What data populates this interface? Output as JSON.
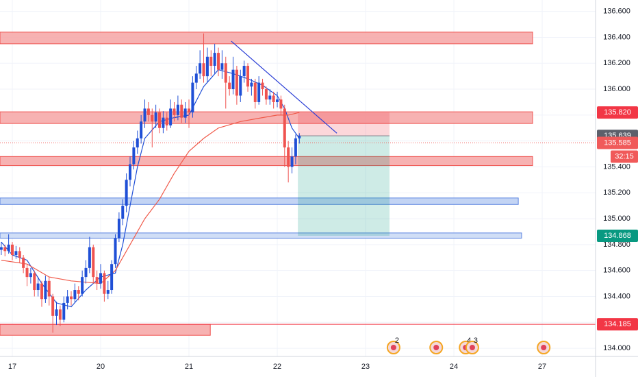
{
  "chart_data": {
    "type": "candlestick",
    "up_color": "#1f4fd6",
    "down_color": "#ef5350",
    "grid": true,
    "xlim": [
      -3.35,
      158.5
    ],
    "ylim": [
      133.937,
      136.688
    ],
    "xticks": [
      {
        "value": 0,
        "label": "17"
      },
      {
        "value": 24,
        "label": "20"
      },
      {
        "value": 48,
        "label": "21"
      },
      {
        "value": 72,
        "label": "22"
      },
      {
        "value": 96,
        "label": "23"
      },
      {
        "value": 120,
        "label": "24"
      },
      {
        "value": 144,
        "label": "27"
      }
    ],
    "yticks": [
      {
        "value": 134.0,
        "label": "134.000"
      },
      {
        "value": 134.2,
        "label": "134.200"
      },
      {
        "value": 134.4,
        "label": "134.400"
      },
      {
        "value": 134.6,
        "label": "134.600"
      },
      {
        "value": 134.8,
        "label": "134.800"
      },
      {
        "value": 135.0,
        "label": "135.000"
      },
      {
        "value": 135.2,
        "label": "135.200"
      },
      {
        "value": 135.4,
        "label": "135.400"
      },
      {
        "value": 135.6,
        "label": "135.600"
      },
      {
        "value": 135.8,
        "label": "135.800"
      },
      {
        "value": 136.0,
        "label": "136.000"
      },
      {
        "value": 136.2,
        "label": "136.200"
      },
      {
        "value": 136.4,
        "label": "136.400"
      },
      {
        "value": 136.6,
        "label": "136.600"
      }
    ],
    "x": [
      -3,
      -2,
      -1,
      0,
      1,
      2,
      3,
      4,
      5,
      6,
      7,
      8,
      9,
      10,
      11,
      12,
      13,
      14,
      15,
      16,
      17,
      18,
      19,
      20,
      21,
      22,
      23,
      24,
      25,
      26,
      27,
      28,
      29,
      30,
      31,
      32,
      33,
      34,
      35,
      36,
      37,
      38,
      39,
      40,
      41,
      42,
      43,
      44,
      45,
      46,
      47,
      48,
      49,
      50,
      51,
      52,
      53,
      54,
      55,
      56,
      57,
      58,
      59,
      60,
      61,
      62,
      63,
      64,
      65,
      66,
      67,
      68,
      69,
      70,
      71,
      72,
      73,
      74,
      75,
      76,
      77,
      78
    ],
    "open": [
      134.76,
      134.78,
      134.75,
      134.8,
      134.72,
      134.75,
      134.7,
      134.62,
      134.55,
      134.58,
      134.45,
      134.5,
      134.38,
      134.52,
      134.4,
      134.25,
      134.3,
      134.22,
      134.35,
      134.4,
      134.38,
      134.45,
      134.42,
      134.55,
      134.62,
      134.78,
      134.55,
      134.5,
      134.58,
      134.42,
      134.45,
      134.65,
      134.85,
      135.0,
      135.1,
      135.3,
      135.42,
      135.55,
      135.62,
      135.75,
      135.85,
      135.8,
      135.75,
      135.82,
      135.7,
      135.78,
      135.72,
      135.85,
      135.8,
      135.88,
      135.78,
      135.85,
      135.82,
      136.05,
      136.12,
      136.2,
      136.1,
      136.25,
      136.18,
      136.28,
      136.15,
      136.2,
      136.05,
      136.0,
      136.15,
      135.95,
      136.1,
      136.18,
      136.02,
      136.05,
      135.9,
      136.05,
      136.0,
      135.92,
      135.95,
      135.9,
      135.92,
      135.85,
      135.55,
      135.4,
      135.48,
      135.62
    ],
    "high": [
      134.82,
      134.8,
      134.88,
      134.82,
      134.79,
      134.78,
      134.72,
      134.65,
      134.62,
      134.6,
      134.55,
      134.52,
      134.56,
      134.55,
      134.42,
      134.36,
      134.33,
      134.4,
      134.45,
      134.44,
      134.5,
      134.48,
      134.6,
      134.68,
      134.86,
      134.8,
      134.6,
      134.65,
      134.6,
      134.52,
      134.68,
      134.88,
      135.05,
      135.15,
      135.35,
      135.48,
      135.6,
      135.68,
      135.8,
      135.92,
      135.9,
      135.85,
      135.88,
      135.85,
      135.83,
      135.82,
      135.92,
      135.9,
      135.95,
      135.92,
      135.9,
      135.92,
      136.1,
      136.18,
      136.3,
      136.43,
      136.32,
      136.3,
      136.35,
      136.32,
      136.3,
      136.25,
      136.1,
      136.25,
      136.18,
      136.15,
      136.22,
      136.2,
      136.08,
      136.08,
      136.1,
      136.08,
      136.02,
      136.0,
      135.98,
      135.98,
      135.95,
      135.88,
      135.6,
      135.55,
      135.65,
      135.66
    ],
    "low": [
      134.72,
      134.71,
      134.73,
      134.68,
      134.69,
      134.66,
      134.58,
      134.48,
      134.5,
      134.4,
      134.4,
      134.32,
      134.35,
      134.33,
      134.12,
      134.18,
      134.17,
      134.2,
      134.3,
      134.33,
      134.35,
      134.37,
      134.4,
      134.5,
      134.58,
      134.5,
      134.45,
      134.46,
      134.36,
      134.38,
      134.42,
      134.62,
      134.82,
      134.95,
      135.05,
      135.25,
      135.38,
      135.5,
      135.58,
      135.7,
      135.75,
      135.55,
      135.7,
      135.66,
      135.66,
      135.68,
      135.7,
      135.75,
      135.76,
      135.74,
      135.74,
      135.7,
      135.78,
      136.0,
      136.08,
      136.05,
      136.05,
      136.1,
      136.12,
      136.1,
      136.08,
      135.85,
      135.95,
      135.96,
      135.88,
      135.9,
      136.05,
      135.98,
      135.95,
      135.85,
      135.88,
      135.95,
      135.88,
      135.88,
      135.85,
      135.86,
      135.8,
      135.4,
      135.28,
      135.35,
      135.42,
      135.58
    ],
    "close": [
      134.78,
      134.75,
      134.8,
      134.72,
      134.75,
      134.7,
      134.62,
      134.55,
      134.58,
      134.45,
      134.5,
      134.38,
      134.52,
      134.4,
      134.25,
      134.3,
      134.22,
      134.35,
      134.4,
      134.38,
      134.45,
      134.42,
      134.55,
      134.62,
      134.78,
      134.55,
      134.5,
      134.58,
      134.42,
      134.45,
      134.65,
      134.85,
      135.0,
      135.1,
      135.3,
      135.42,
      135.55,
      135.62,
      135.75,
      135.85,
      135.8,
      135.75,
      135.82,
      135.7,
      135.78,
      135.72,
      135.85,
      135.8,
      135.88,
      135.78,
      135.85,
      135.82,
      136.05,
      136.12,
      136.2,
      136.1,
      136.25,
      136.18,
      136.28,
      136.15,
      136.2,
      136.05,
      136.0,
      136.15,
      135.95,
      136.1,
      136.18,
      136.02,
      136.05,
      135.9,
      136.05,
      136.0,
      135.92,
      135.95,
      135.9,
      135.92,
      135.85,
      135.55,
      135.4,
      135.48,
      135.62,
      135.64
    ],
    "moving_averages": [
      {
        "color": "#1f4fd6",
        "x": [
          -3,
          0,
          4,
          8,
          12,
          16,
          20,
          24,
          28,
          30,
          32,
          34,
          36,
          40,
          44,
          48,
          52,
          56,
          60,
          64,
          68,
          72,
          74,
          76,
          78
        ],
        "values": [
          134.82,
          134.72,
          134.68,
          134.5,
          134.35,
          134.32,
          134.45,
          134.55,
          134.58,
          134.8,
          135.1,
          135.4,
          135.62,
          135.75,
          135.78,
          135.8,
          136.02,
          136.15,
          136.12,
          136.08,
          136.03,
          135.95,
          135.85,
          135.7,
          135.62
        ]
      },
      {
        "color": "#f05a4a",
        "x": [
          -3,
          4,
          10,
          16,
          24,
          28,
          32,
          36,
          40,
          44,
          48,
          52,
          56,
          62,
          68,
          72,
          75,
          78
        ],
        "values": [
          134.68,
          134.65,
          134.55,
          134.52,
          134.5,
          134.6,
          134.8,
          135.0,
          135.15,
          135.35,
          135.52,
          135.62,
          135.7,
          135.75,
          135.78,
          135.8,
          135.8,
          135.82
        ]
      }
    ],
    "zones": [
      {
        "low": 136.35,
        "high": 136.44,
        "x0": -3.35,
        "x1": 141.4,
        "color": "#f6a5a4",
        "stroke": "#ef5350"
      },
      {
        "low": 135.735,
        "high": 135.825,
        "x0": -3.35,
        "x1": 141.4,
        "color": "#f6a5a4",
        "stroke": "#ef5350"
      },
      {
        "low": 135.41,
        "high": 135.48,
        "x0": -3.35,
        "x1": 141.4,
        "color": "#f6a5a4",
        "stroke": "#ef5350"
      },
      {
        "low": 135.11,
        "high": 135.16,
        "x0": -3.35,
        "x1": 137.5,
        "color": "#b9cdf2",
        "stroke": "#5b84e0"
      },
      {
        "low": 134.85,
        "high": 134.89,
        "x0": -3.35,
        "x1": 138.4,
        "color": "#c8d8f5",
        "stroke": "#5b84e0"
      },
      {
        "low": 134.1,
        "high": 134.185,
        "x0": -3.35,
        "x1": 53.8,
        "color": "#f6a5a4",
        "stroke": "#ef5350"
      }
    ],
    "trendline": {
      "color": "#2b3fd6",
      "x": [
        59.5,
        88.2
      ],
      "y": [
        136.37,
        135.66
      ]
    },
    "position": {
      "x0": 77.6,
      "x1": 102.5,
      "entry": 135.64,
      "stop": 135.82,
      "target": 134.868
    },
    "horizontal_lines": [
      {
        "value": 135.585,
        "color": "#ef5350",
        "dash": true
      },
      {
        "value": 134.185,
        "color": "#f23645",
        "dash": false
      }
    ],
    "price_labels": [
      {
        "value": 135.82,
        "label": "135.820",
        "color": "#f23645"
      },
      {
        "value": 135.639,
        "label": "135.639",
        "color": "#5d606b"
      },
      {
        "value": 135.585,
        "label": "135.585",
        "color": "#f05a5a"
      },
      {
        "value": 134.868,
        "label": "134.868",
        "color": "#089981"
      },
      {
        "value": 134.185,
        "label": "134.185",
        "color": "#f23645"
      }
    ],
    "countdown": {
      "label": "32:15",
      "color": "#f05a5a"
    },
    "events": [
      {
        "x": 103.6,
        "label": "2"
      },
      {
        "x": 115.2
      },
      {
        "x": 123.2,
        "label": "4"
      },
      {
        "x": 125.0,
        "label": "3"
      },
      {
        "x": 144.4
      }
    ]
  }
}
